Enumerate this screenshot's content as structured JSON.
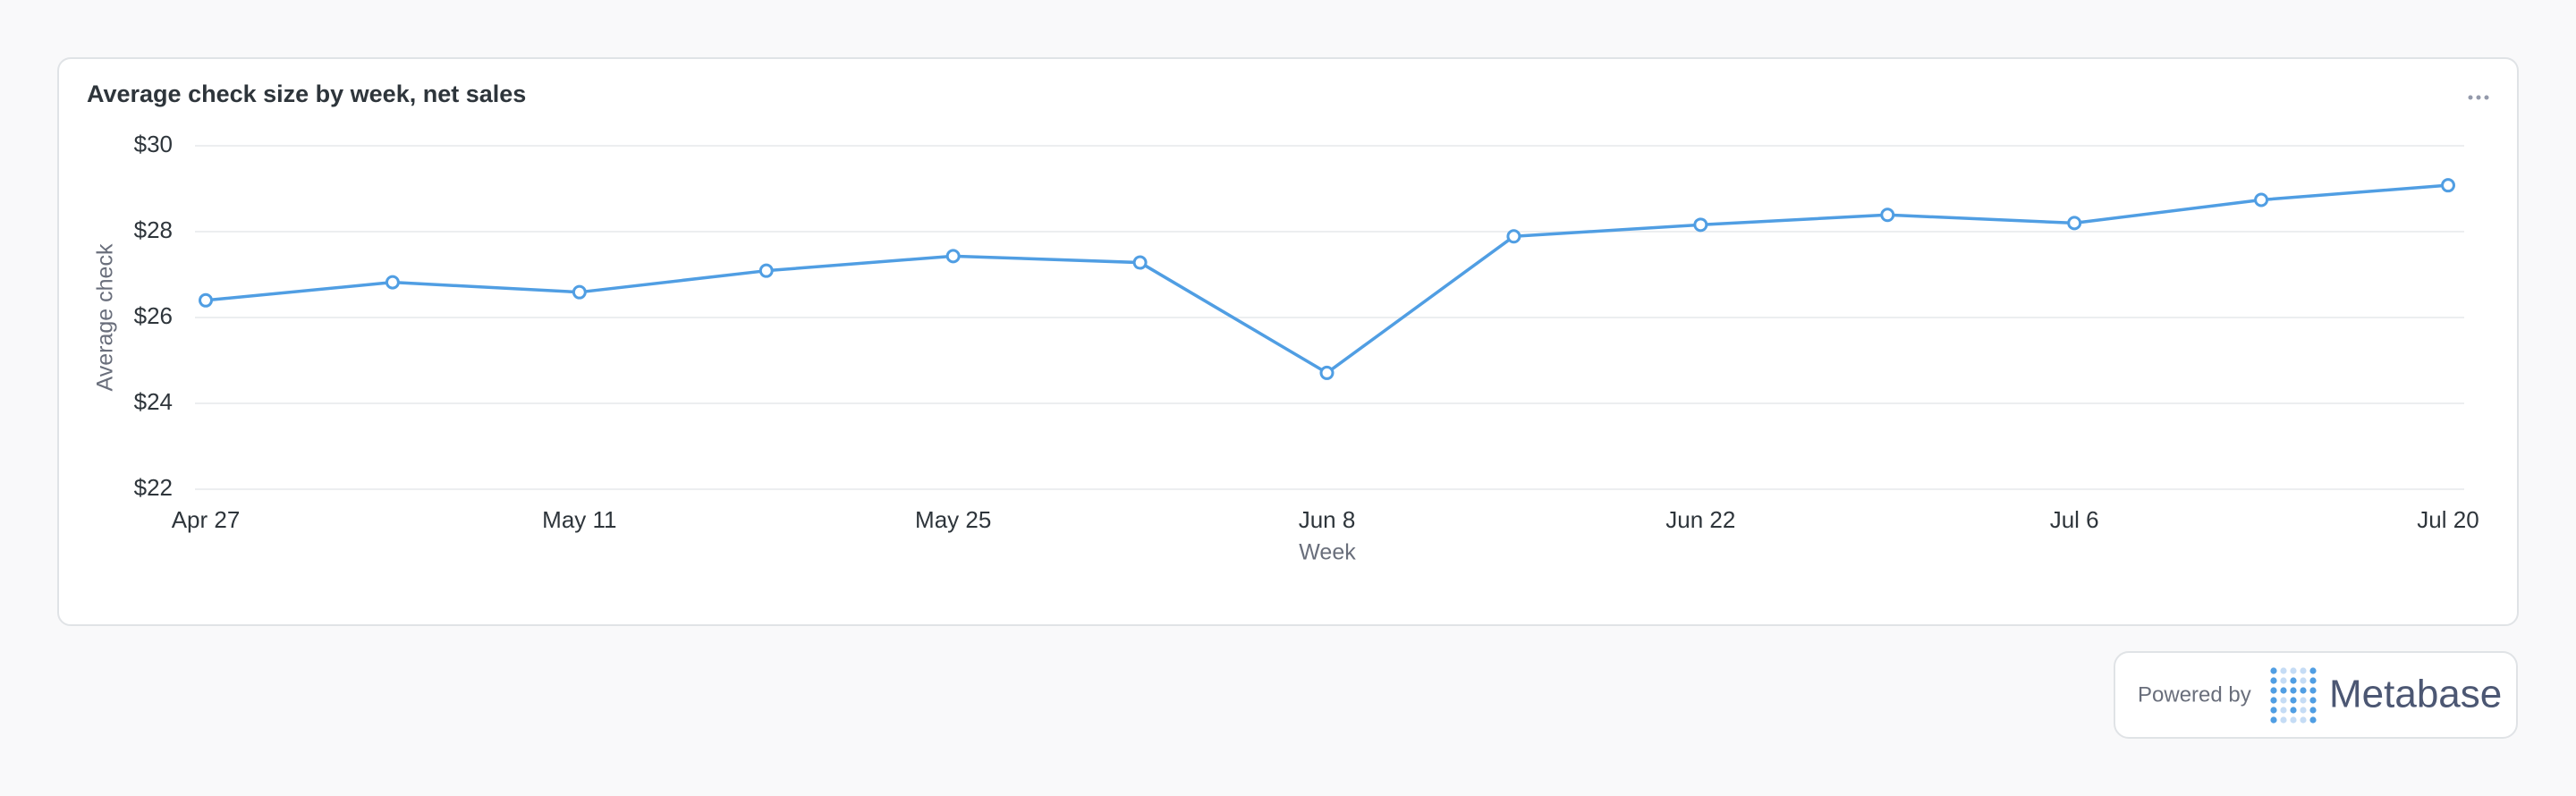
{
  "chart_data": {
    "type": "line",
    "title": "Average check size by week, net sales",
    "y_label": "Average check",
    "x_label": "Week",
    "categories": [
      "Apr 27",
      null,
      "May 11",
      null,
      "May 25",
      null,
      "Jun 8",
      null,
      "Jun 22",
      null,
      "Jul 6",
      null,
      "Jul 20"
    ],
    "values": [
      26.4,
      26.82,
      26.59,
      27.09,
      27.43,
      27.28,
      24.71,
      27.89,
      28.16,
      28.39,
      28.2,
      28.74,
      29.08
    ],
    "color": "#509ee3",
    "ylim": [
      22,
      30
    ],
    "yticks": [
      {
        "value": 22,
        "label": "$22"
      },
      {
        "value": 24,
        "label": "$24"
      },
      {
        "value": 26,
        "label": "$26"
      },
      {
        "value": 28,
        "label": "$28"
      },
      {
        "value": 30,
        "label": "$30"
      }
    ],
    "grid": true
  },
  "footer": {
    "powered_by": "Powered by",
    "brand": "Metabase"
  }
}
